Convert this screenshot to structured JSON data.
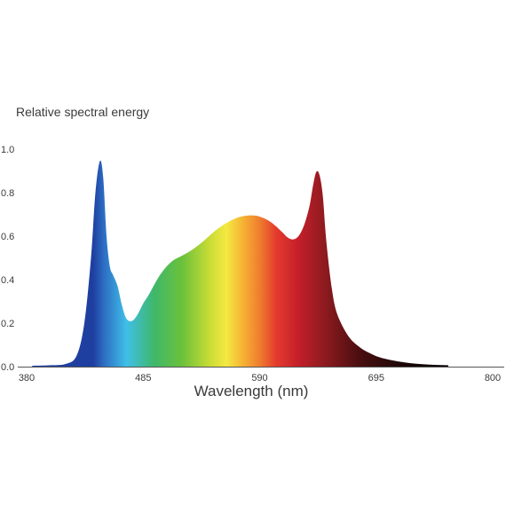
{
  "chart_data": {
    "type": "area",
    "title": "",
    "ylabel": "Relative spectral energy",
    "xlabel": "Wavelength (nm)",
    "xlim": [
      380,
      800
    ],
    "ylim": [
      0,
      1.0
    ],
    "x_ticks": [
      380,
      485,
      590,
      695,
      800
    ],
    "x_tick_labels": [
      "380",
      "485",
      "590",
      "695",
      "800"
    ],
    "y_ticks": [
      0.0,
      0.2,
      0.4,
      0.6,
      0.8,
      1.0
    ],
    "y_tick_labels": [
      "0.0",
      "0.2",
      "0.4",
      "0.6",
      "0.8",
      "1.0"
    ],
    "grid": false,
    "legend": "none",
    "series": [
      {
        "x": [
          385,
          400,
          415,
          425,
          432,
          438,
          442,
          446,
          449,
          452,
          455,
          458,
          462,
          466,
          470,
          475,
          480,
          485,
          490,
          500,
          510,
          520,
          530,
          540,
          550,
          560,
          570,
          580,
          590,
          600,
          610,
          615,
          620,
          625,
          630,
          635,
          638,
          641,
          644,
          647,
          650,
          655,
          660,
          670,
          680,
          690,
          700,
          720,
          740,
          760
        ],
        "y": [
          0.004,
          0.006,
          0.012,
          0.05,
          0.2,
          0.5,
          0.8,
          0.945,
          0.87,
          0.6,
          0.46,
          0.42,
          0.37,
          0.28,
          0.22,
          0.21,
          0.24,
          0.29,
          0.33,
          0.42,
          0.48,
          0.51,
          0.54,
          0.58,
          0.625,
          0.66,
          0.685,
          0.695,
          0.69,
          0.665,
          0.62,
          0.595,
          0.585,
          0.6,
          0.65,
          0.74,
          0.83,
          0.895,
          0.88,
          0.78,
          0.58,
          0.36,
          0.24,
          0.14,
          0.09,
          0.06,
          0.04,
          0.02,
          0.01,
          0.006
        ]
      }
    ],
    "spectrum_colors": [
      {
        "x": 440,
        "color": "#1f3fa0"
      },
      {
        "x": 450,
        "color": "#2d6fc4"
      },
      {
        "x": 470,
        "color": "#3fbfe8"
      },
      {
        "x": 495,
        "color": "#3fb86a"
      },
      {
        "x": 520,
        "color": "#6ac13a"
      },
      {
        "x": 545,
        "color": "#c9dc35"
      },
      {
        "x": 560,
        "color": "#f4e942"
      },
      {
        "x": 575,
        "color": "#f6b234"
      },
      {
        "x": 590,
        "color": "#ef7d2e"
      },
      {
        "x": 605,
        "color": "#e43a2e"
      },
      {
        "x": 625,
        "color": "#c41f2a"
      },
      {
        "x": 650,
        "color": "#8a1a1e"
      },
      {
        "x": 680,
        "color": "#4a0e10"
      },
      {
        "x": 720,
        "color": "#1a0606"
      },
      {
        "x": 760,
        "color": "#050202"
      }
    ]
  }
}
